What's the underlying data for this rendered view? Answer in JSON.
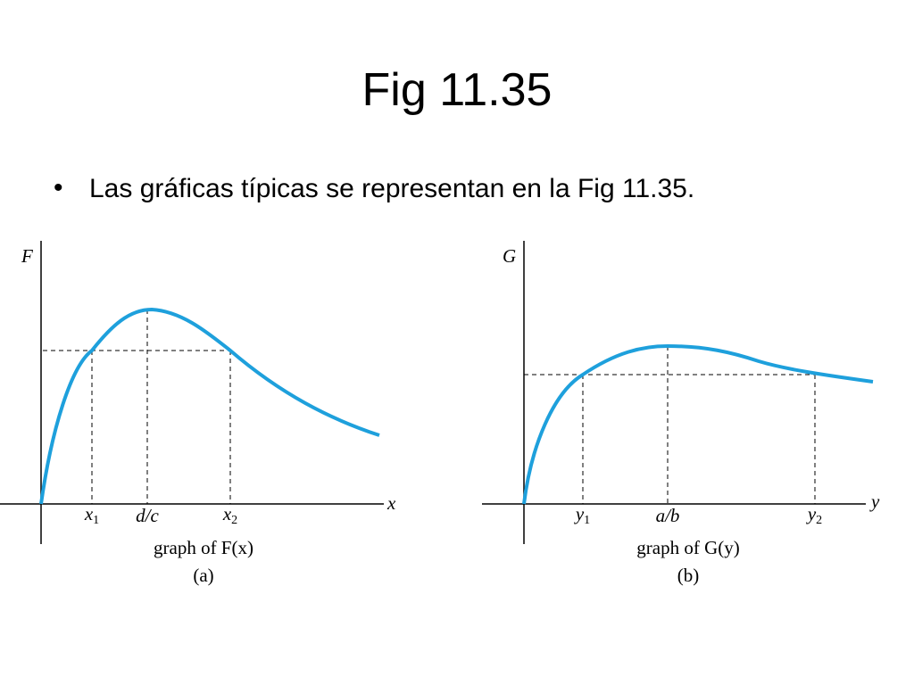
{
  "title": "Fig 11.35",
  "bullet": "Las gráficas típicas se representan en la Fig 11.35.",
  "panels": [
    {
      "y_axis": "F",
      "x_axis": "x",
      "ticks": [
        {
          "base": "x",
          "sub": "1"
        },
        {
          "base": "d/c"
        },
        {
          "base": "x",
          "sub": "2"
        }
      ],
      "caption": "graph of F(x)",
      "label": "(a)"
    },
    {
      "y_axis": "G",
      "x_axis": "y",
      "ticks": [
        {
          "base": "y",
          "sub": "1"
        },
        {
          "base": "a/b"
        },
        {
          "base": "y",
          "sub": "2"
        }
      ],
      "caption": "graph of G(y)",
      "label": "(b)"
    }
  ]
}
